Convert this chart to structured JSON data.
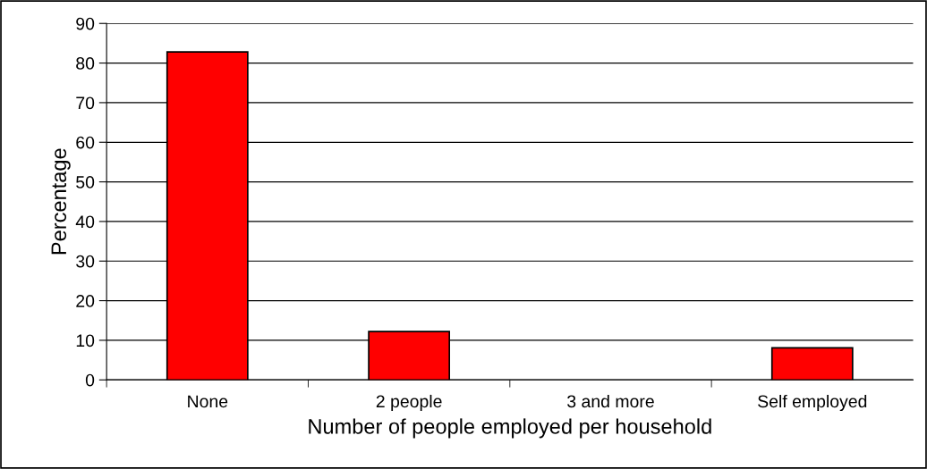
{
  "chart_data": {
    "type": "bar",
    "xlabel": "Number of people employed per household",
    "ylabel": "Percentage",
    "categories": [
      "None",
      "2 people",
      "3 and more",
      "Self employed"
    ],
    "values": [
      82.8,
      12.2,
      0,
      8.1
    ],
    "color": "#ff0000",
    "ylim": [
      0,
      90
    ],
    "yticks": [
      0,
      10,
      20,
      30,
      40,
      50,
      60,
      70,
      80,
      90
    ],
    "grid": "y"
  }
}
